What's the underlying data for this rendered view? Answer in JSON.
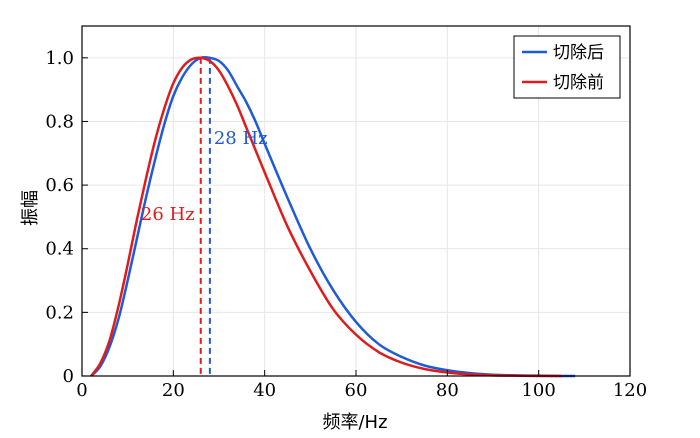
{
  "chart_data": {
    "type": "line",
    "title": "",
    "xlabel": "频率/Hz",
    "ylabel": "振幅",
    "xlim": [
      0,
      120
    ],
    "ylim": [
      0,
      1.1
    ],
    "xticks": [
      0,
      20,
      40,
      60,
      80,
      100,
      120
    ],
    "yticks": [
      0,
      0.2,
      0.4,
      0.6,
      0.8,
      1.0
    ],
    "xtick_labels": [
      "0",
      "20",
      "40",
      "60",
      "80",
      "100",
      "120"
    ],
    "ytick_labels": [
      "0",
      "0.2",
      "0.4",
      "0.6",
      "0.8",
      "1.0"
    ],
    "grid": true,
    "legend_position": "top-right",
    "series": [
      {
        "name": "切除后",
        "color": "#1f5bd8",
        "x": [
          2,
          4,
          6,
          8,
          10,
          12,
          14,
          16,
          18,
          20,
          22,
          24,
          26,
          28,
          30,
          32,
          34,
          36,
          38,
          40,
          45,
          50,
          55,
          60,
          65,
          70,
          75,
          80,
          85,
          90,
          95,
          100,
          105,
          108
        ],
        "y": [
          0.0,
          0.03,
          0.09,
          0.18,
          0.3,
          0.43,
          0.56,
          0.68,
          0.79,
          0.88,
          0.94,
          0.98,
          1.0,
          1.0,
          0.99,
          0.96,
          0.91,
          0.86,
          0.8,
          0.73,
          0.56,
          0.4,
          0.27,
          0.17,
          0.1,
          0.06,
          0.033,
          0.018,
          0.009,
          0.004,
          0.002,
          0.001,
          0.0,
          0.0
        ]
      },
      {
        "name": "切除前",
        "color": "#e01b1b",
        "x": [
          2,
          4,
          6,
          8,
          10,
          12,
          14,
          16,
          18,
          20,
          22,
          24,
          26,
          28,
          30,
          32,
          34,
          36,
          38,
          40,
          45,
          50,
          55,
          60,
          65,
          70,
          75,
          80,
          85,
          90,
          95,
          100,
          105
        ],
        "y": [
          0.0,
          0.04,
          0.11,
          0.22,
          0.35,
          0.49,
          0.62,
          0.74,
          0.84,
          0.92,
          0.97,
          0.995,
          1.0,
          0.99,
          0.96,
          0.91,
          0.85,
          0.78,
          0.71,
          0.64,
          0.47,
          0.33,
          0.21,
          0.13,
          0.075,
          0.042,
          0.022,
          0.011,
          0.005,
          0.002,
          0.001,
          0.0,
          0.0
        ]
      }
    ],
    "annotations": [
      {
        "text": "28 Hz",
        "x": 28,
        "color": "#1f5bd8"
      },
      {
        "text": "26 Hz",
        "x": 26,
        "color": "#e01b1b"
      }
    ]
  }
}
